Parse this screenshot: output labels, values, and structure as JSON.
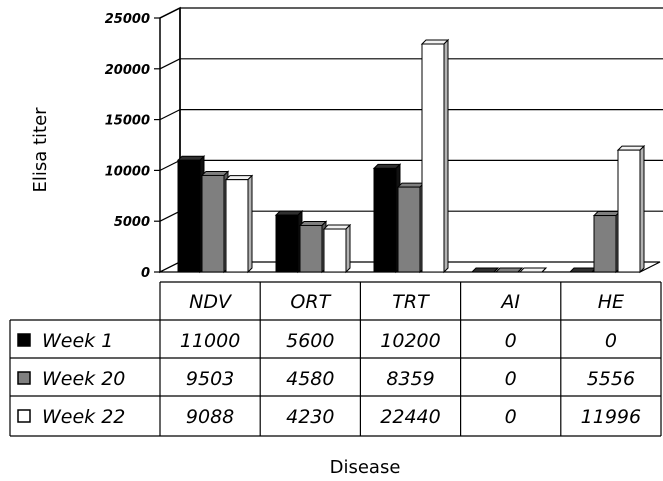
{
  "chart_data": {
    "type": "bar",
    "style": "3d-clustered-with-data-table",
    "categories": [
      "NDV",
      "ORT",
      "TRT",
      "AI",
      "HE"
    ],
    "series": [
      {
        "name": "Week 1",
        "values": [
          11000,
          5600,
          10200,
          0,
          0
        ],
        "color": "#000000"
      },
      {
        "name": "Week 20",
        "values": [
          9503,
          4580,
          8359,
          0,
          5556
        ],
        "color": "#7f7f7f"
      },
      {
        "name": "Week 22",
        "values": [
          9088,
          4230,
          22440,
          0,
          11996
        ],
        "color": "#ffffff"
      }
    ],
    "table": [
      [
        "11000",
        "5600",
        "10200",
        "0",
        "0"
      ],
      [
        "9503",
        "4580",
        "8359",
        "0",
        "5556"
      ],
      [
        "9088",
        "4230",
        "22440",
        "0",
        "11996"
      ]
    ],
    "ylabel": "Elisa titer",
    "xlabel": "Disease",
    "ylim": [
      0,
      25000
    ],
    "yticks": [
      "0",
      "5000",
      "10000",
      "15000",
      "20000",
      "25000"
    ],
    "ytick_values": [
      0,
      5000,
      10000,
      15000,
      20000,
      25000
    ],
    "grid": true,
    "legend": "data-table-rows"
  }
}
